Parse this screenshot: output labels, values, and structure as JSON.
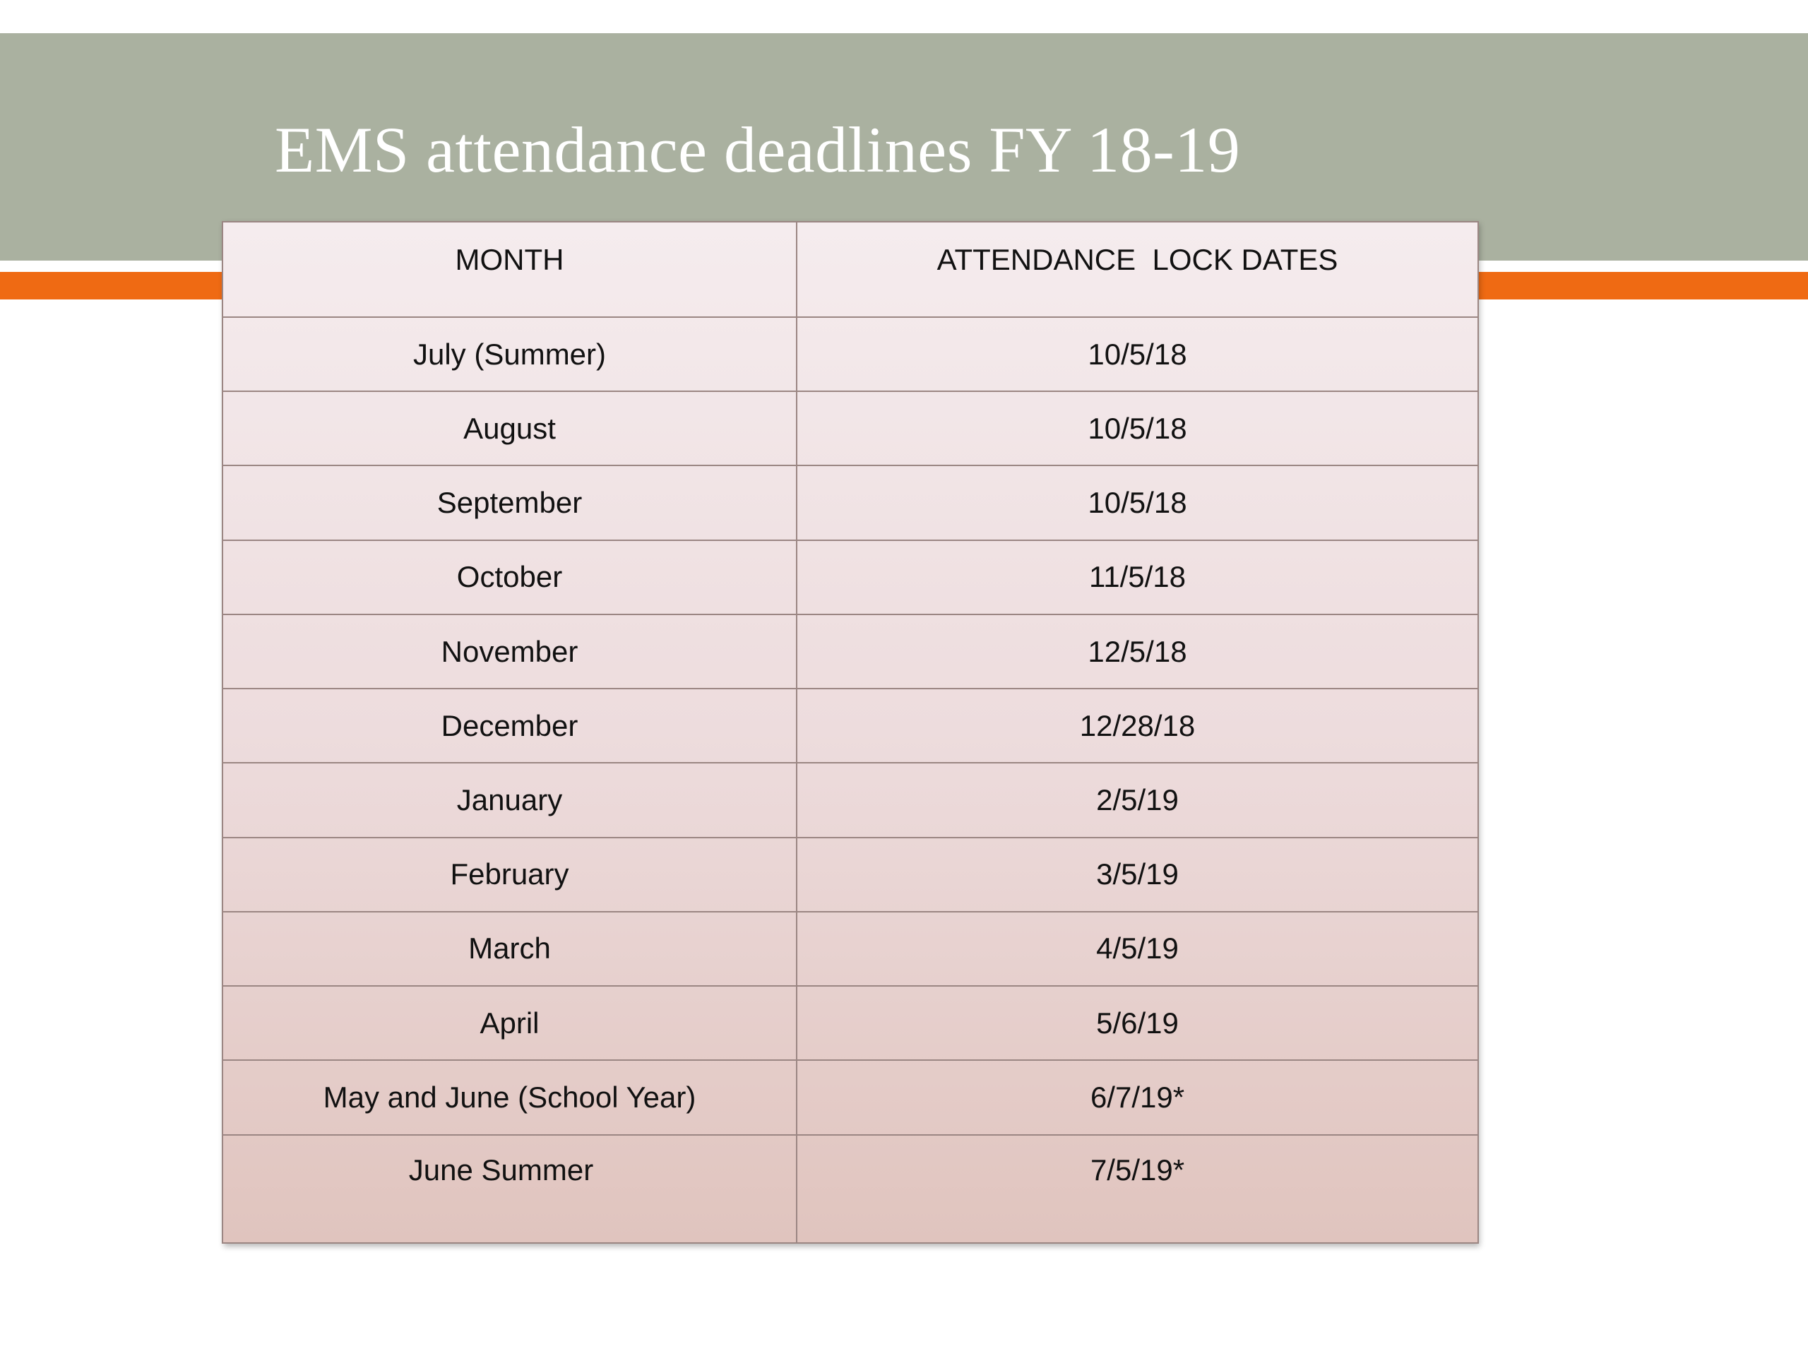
{
  "slide": {
    "title": "EMS attendance deadlines FY 18-19"
  },
  "table": {
    "headers": [
      "MONTH",
      "ATTENDANCE  LOCK DATES"
    ],
    "rows": [
      {
        "month": "July (Summer)",
        "date": "10/5/18"
      },
      {
        "month": "August",
        "date": "10/5/18"
      },
      {
        "month": "September",
        "date": "10/5/18"
      },
      {
        "month": "October",
        "date": "11/5/18"
      },
      {
        "month": "November",
        "date": "12/5/18"
      },
      {
        "month": "December",
        "date": "12/28/18"
      },
      {
        "month": "January",
        "date": "2/5/19"
      },
      {
        "month": "February",
        "date": "3/5/19"
      },
      {
        "month": "March",
        "date": "4/5/19"
      },
      {
        "month": "April",
        "date": "5/6/19"
      },
      {
        "month": "May and June (School Year)",
        "date": "6/7/19*"
      },
      {
        "month": "June Summer",
        "date": "7/5/19*"
      }
    ]
  },
  "colors": {
    "title_band": "#aab1a0",
    "accent_stripe": "#ef6a13",
    "title_text": "#ffffff",
    "table_border": "#9b8683"
  }
}
